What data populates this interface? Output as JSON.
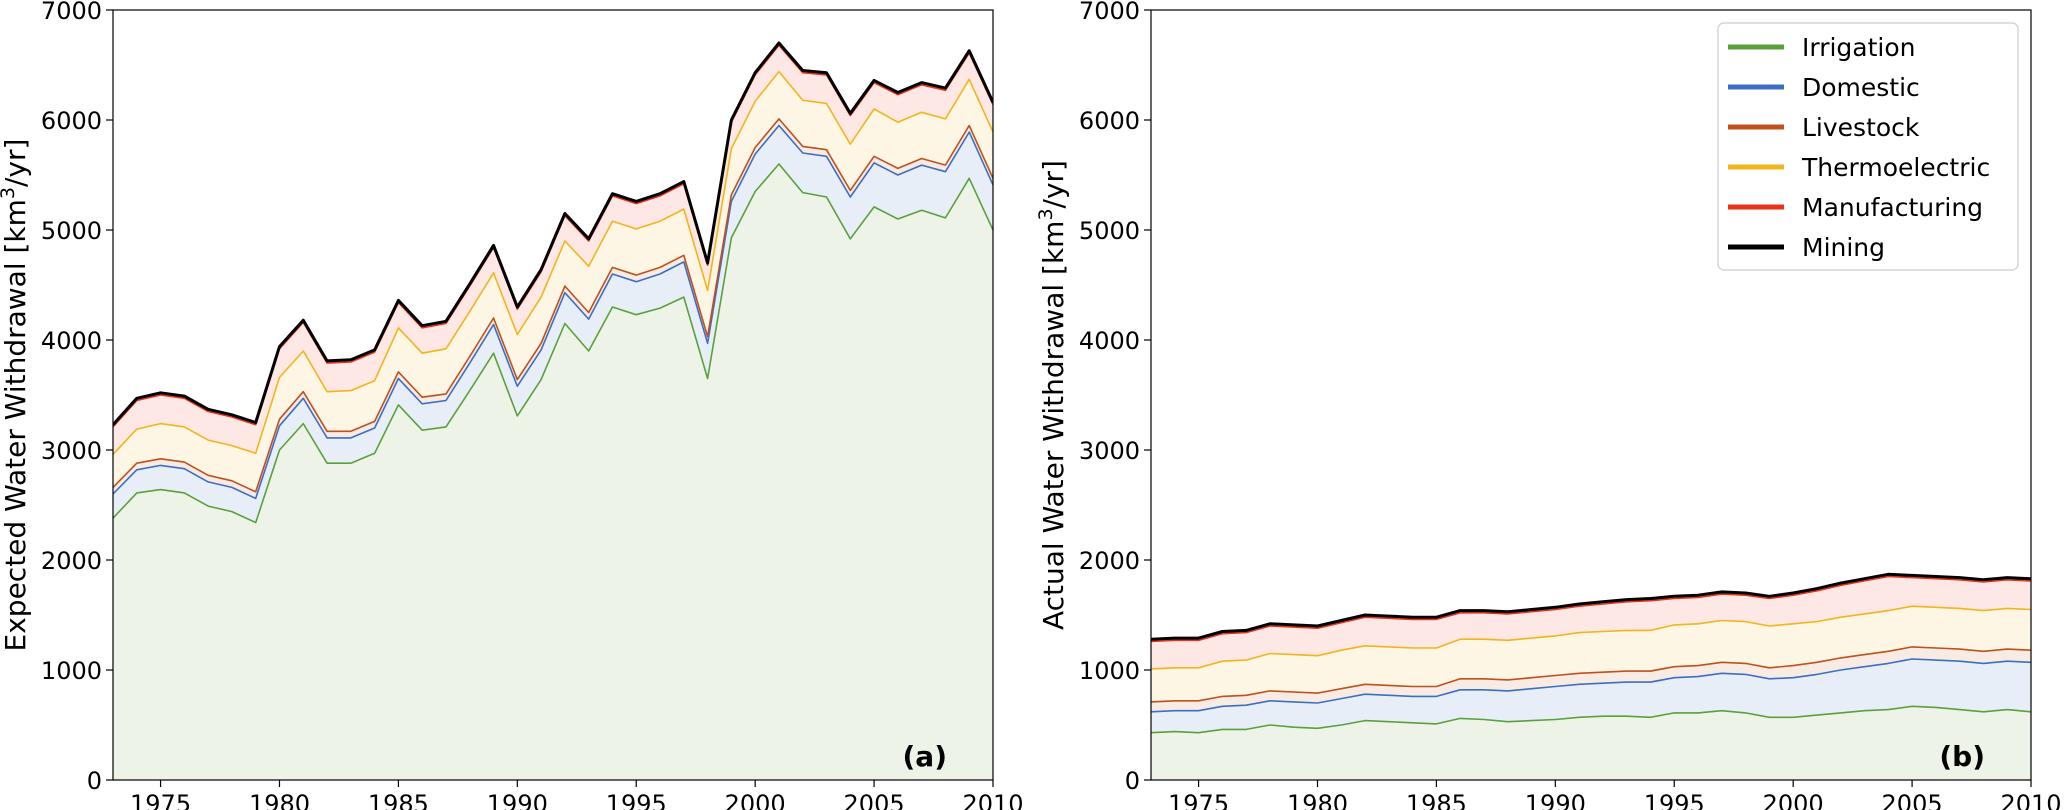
{
  "chart_data": [
    {
      "type": "area",
      "stacked": true,
      "panel_tag": "(a)",
      "ylabel": "Expected Water Withdrawal [km",
      "ylabel_sup": "3",
      "ylabel_tail": "/yr]",
      "xlim": [
        1973,
        2010
      ],
      "ylim": [
        0,
        7000
      ],
      "xticks": [
        1975,
        1980,
        1985,
        1990,
        1995,
        2000,
        2005,
        2010
      ],
      "yticks": [
        0,
        1000,
        2000,
        3000,
        4000,
        5000,
        6000,
        7000
      ],
      "grid": false,
      "x": [
        1973,
        1974,
        1975,
        1976,
        1977,
        1978,
        1979,
        1980,
        1981,
        1982,
        1983,
        1984,
        1985,
        1986,
        1987,
        1988,
        1989,
        1990,
        1991,
        1992,
        1993,
        1994,
        1995,
        1996,
        1997,
        1998,
        1999,
        2000,
        2001,
        2002,
        2003,
        2004,
        2005,
        2006,
        2007,
        2008,
        2009,
        2010
      ],
      "series": [
        {
          "name": "Irrigation",
          "values": [
            2380,
            2610,
            2640,
            2610,
            2490,
            2440,
            2340,
            3000,
            3240,
            2880,
            2880,
            2970,
            3410,
            3180,
            3210,
            3540,
            3880,
            3310,
            3640,
            4150,
            3900,
            4300,
            4230,
            4290,
            4390,
            3650,
            4930,
            5350,
            5600,
            5340,
            5300,
            4920,
            5210,
            5100,
            5180,
            5110,
            5470,
            5000
          ]
        },
        {
          "name": "Domestic",
          "values": [
            220,
            210,
            220,
            220,
            220,
            220,
            220,
            220,
            230,
            230,
            230,
            230,
            240,
            240,
            240,
            250,
            260,
            270,
            270,
            280,
            290,
            300,
            300,
            310,
            320,
            320,
            330,
            340,
            350,
            360,
            370,
            380,
            400,
            400,
            410,
            420,
            420,
            410
          ]
        },
        {
          "name": "Livestock",
          "values": [
            60,
            60,
            60,
            60,
            60,
            60,
            60,
            60,
            60,
            60,
            60,
            60,
            60,
            60,
            60,
            60,
            60,
            60,
            60,
            60,
            60,
            60,
            60,
            60,
            60,
            60,
            60,
            60,
            60,
            60,
            60,
            60,
            60,
            60,
            60,
            60,
            60,
            60
          ]
        },
        {
          "name": "Thermoelectric",
          "values": [
            300,
            310,
            320,
            320,
            320,
            320,
            350,
            380,
            370,
            360,
            370,
            370,
            400,
            400,
            410,
            410,
            410,
            410,
            420,
            410,
            420,
            420,
            420,
            420,
            420,
            420,
            420,
            420,
            430,
            420,
            420,
            420,
            430,
            420,
            420,
            420,
            420,
            420
          ]
        },
        {
          "name": "Manufacturing",
          "values": [
            250,
            260,
            260,
            260,
            260,
            260,
            260,
            260,
            260,
            260,
            260,
            260,
            230,
            230,
            230,
            230,
            230,
            230,
            230,
            230,
            230,
            230,
            230,
            230,
            230,
            230,
            240,
            240,
            240,
            250,
            260,
            260,
            240,
            250,
            250,
            260,
            240,
            250
          ]
        },
        {
          "name": "Mining",
          "values": [
            20,
            20,
            20,
            20,
            20,
            20,
            20,
            20,
            20,
            20,
            20,
            20,
            20,
            20,
            20,
            20,
            20,
            20,
            20,
            20,
            20,
            20,
            20,
            20,
            20,
            20,
            20,
            20,
            20,
            20,
            20,
            20,
            20,
            20,
            20,
            20,
            20,
            20
          ]
        }
      ]
    },
    {
      "type": "area",
      "stacked": true,
      "panel_tag": "(b)",
      "ylabel": "Actual Water Withdrawal [km",
      "ylabel_sup": "3",
      "ylabel_tail": "/yr]",
      "xlim": [
        1973,
        2010
      ],
      "ylim": [
        0,
        7000
      ],
      "xticks": [
        1975,
        1980,
        1985,
        1990,
        1995,
        2000,
        2005,
        2010
      ],
      "yticks": [
        0,
        1000,
        2000,
        3000,
        4000,
        5000,
        6000,
        7000
      ],
      "grid": false,
      "legend_position": "top-right",
      "x": [
        1973,
        1974,
        1975,
        1976,
        1977,
        1978,
        1979,
        1980,
        1981,
        1982,
        1983,
        1984,
        1985,
        1986,
        1987,
        1988,
        1989,
        1990,
        1991,
        1992,
        1993,
        1994,
        1995,
        1996,
        1997,
        1998,
        1999,
        2000,
        2001,
        2002,
        2003,
        2004,
        2005,
        2006,
        2007,
        2008,
        2009,
        2010
      ],
      "series": [
        {
          "name": "Irrigation",
          "values": [
            430,
            440,
            430,
            460,
            460,
            500,
            480,
            470,
            500,
            540,
            530,
            520,
            510,
            560,
            550,
            530,
            540,
            550,
            570,
            580,
            580,
            570,
            610,
            610,
            630,
            610,
            570,
            570,
            590,
            610,
            630,
            640,
            670,
            660,
            640,
            620,
            640,
            620
          ]
        },
        {
          "name": "Domestic",
          "values": [
            190,
            190,
            200,
            210,
            220,
            220,
            230,
            230,
            240,
            240,
            240,
            240,
            250,
            260,
            270,
            280,
            290,
            300,
            300,
            300,
            310,
            320,
            320,
            330,
            340,
            350,
            350,
            360,
            370,
            390,
            400,
            420,
            430,
            430,
            440,
            440,
            440,
            450
          ]
        },
        {
          "name": "Livestock",
          "values": [
            90,
            90,
            90,
            90,
            90,
            90,
            90,
            90,
            90,
            90,
            90,
            90,
            90,
            100,
            100,
            100,
            100,
            100,
            100,
            100,
            100,
            100,
            100,
            100,
            100,
            100,
            100,
            110,
            110,
            110,
            110,
            110,
            110,
            110,
            110,
            110,
            110,
            110
          ]
        },
        {
          "name": "Thermoelectric",
          "values": [
            300,
            300,
            300,
            320,
            320,
            340,
            340,
            340,
            350,
            350,
            350,
            350,
            350,
            360,
            360,
            360,
            360,
            360,
            370,
            370,
            370,
            370,
            380,
            380,
            380,
            380,
            380,
            380,
            370,
            370,
            370,
            370,
            370,
            370,
            370,
            370,
            370,
            370
          ]
        },
        {
          "name": "Manufacturing",
          "values": [
            250,
            250,
            250,
            250,
            250,
            250,
            250,
            250,
            250,
            260,
            260,
            260,
            260,
            240,
            240,
            240,
            240,
            240,
            240,
            250,
            260,
            270,
            240,
            240,
            240,
            240,
            250,
            260,
            280,
            290,
            300,
            310,
            260,
            260,
            260,
            260,
            260,
            260
          ]
        },
        {
          "name": "Mining",
          "values": [
            20,
            20,
            20,
            20,
            20,
            20,
            20,
            20,
            20,
            20,
            20,
            20,
            20,
            20,
            20,
            20,
            20,
            20,
            20,
            20,
            20,
            20,
            20,
            20,
            20,
            20,
            20,
            20,
            20,
            20,
            20,
            20,
            20,
            20,
            20,
            20,
            20,
            20
          ]
        }
      ]
    }
  ],
  "legend": {
    "items": [
      {
        "label": "Irrigation",
        "color": "#5aa13b"
      },
      {
        "label": "Domestic",
        "color": "#3b6fc4"
      },
      {
        "label": "Livestock",
        "color": "#c0501c"
      },
      {
        "label": "Thermoelectric",
        "color": "#f2b51a"
      },
      {
        "label": "Manufacturing",
        "color": "#e8321a"
      },
      {
        "label": "Mining",
        "color": "#000000"
      }
    ],
    "fills": [
      "#eef3e8",
      "#e8eef8",
      "#f7ebe4",
      "#fdf6e4",
      "#fde8e6",
      "#e5e5e5"
    ]
  }
}
